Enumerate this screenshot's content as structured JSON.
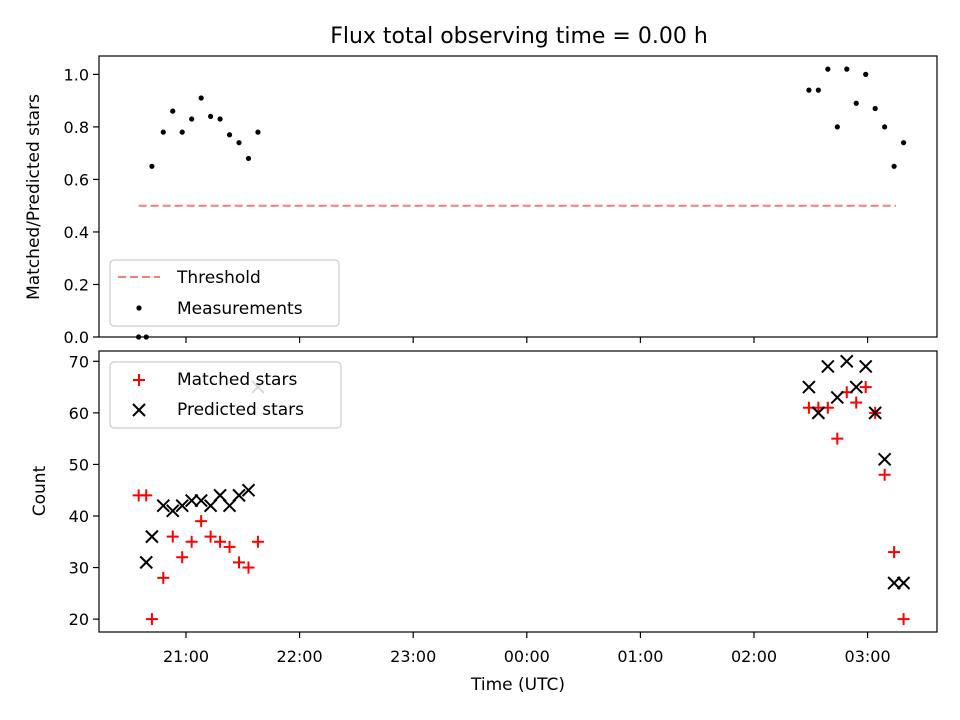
{
  "chart_data": [
    {
      "type": "scatter",
      "title": "Flux total observing time = 0.00 h",
      "xlabel": "",
      "ylabel": "Matched/Predicted stars",
      "ylim": [
        0,
        1.07
      ],
      "yticks": [
        "0.0",
        "0.2",
        "0.4",
        "0.6",
        "0.8",
        "1.0"
      ],
      "legend_placement": "lower-left",
      "grid": false,
      "series": [
        {
          "name": "Threshold",
          "kind": "dashed-line",
          "color": "#f08080",
          "x": [
            "20:35",
            "03:15"
          ],
          "y": [
            0.5,
            0.5
          ]
        },
        {
          "name": "Measurements",
          "kind": "dot",
          "color": "#000000",
          "x": [
            "20:35",
            "20:39",
            "20:42",
            "20:48",
            "20:53",
            "20:58",
            "21:03",
            "21:08",
            "21:13",
            "21:18",
            "21:23",
            "21:28",
            "21:33",
            "21:38",
            "02:29",
            "02:34",
            "02:39",
            "02:44",
            "02:49",
            "02:54",
            "02:59",
            "03:04",
            "03:09",
            "03:14",
            "03:19"
          ],
          "y": [
            0.0,
            0.0,
            0.65,
            0.78,
            0.86,
            0.78,
            0.83,
            0.91,
            0.84,
            0.83,
            0.77,
            0.74,
            0.68,
            0.78,
            0.94,
            0.94,
            1.02,
            0.8,
            1.02,
            0.89,
            1.0,
            0.87,
            0.8,
            0.65,
            0.74
          ]
        }
      ]
    },
    {
      "type": "scatter",
      "xlabel": "Time (UTC)",
      "ylabel": "Count",
      "ylim": [
        17.5,
        72
      ],
      "yticks": [
        "20",
        "30",
        "40",
        "50",
        "60",
        "70"
      ],
      "xticks": [
        "21:00",
        "22:00",
        "23:00",
        "00:00",
        "01:00",
        "02:00",
        "03:00"
      ],
      "legend_placement": "upper-left",
      "grid": false,
      "series": [
        {
          "name": "Matched stars",
          "marker": "+",
          "color": "#ff0000",
          "x": [
            "20:35",
            "20:39",
            "20:42",
            "20:48",
            "20:53",
            "20:58",
            "21:03",
            "21:08",
            "21:13",
            "21:18",
            "21:23",
            "21:28",
            "21:33",
            "21:38",
            "02:29",
            "02:34",
            "02:39",
            "02:44",
            "02:49",
            "02:54",
            "02:59",
            "03:04",
            "03:09",
            "03:14",
            "03:19"
          ],
          "y": [
            44,
            44,
            20,
            28,
            36,
            32,
            35,
            39,
            36,
            35,
            34,
            31,
            30,
            35,
            61,
            61,
            61,
            55,
            64,
            62,
            65,
            60,
            48,
            33,
            20
          ]
        },
        {
          "name": "Predicted stars",
          "marker": "x",
          "color": "#000000",
          "x": [
            "20:39",
            "20:42",
            "20:48",
            "20:53",
            "20:58",
            "21:03",
            "21:08",
            "21:13",
            "21:18",
            "21:23",
            "21:28",
            "21:33",
            "21:38",
            "02:29",
            "02:34",
            "02:39",
            "02:44",
            "02:49",
            "02:54",
            "02:59",
            "03:04",
            "03:09",
            "03:14",
            "03:19"
          ],
          "y": [
            31,
            36,
            42,
            41,
            42,
            43,
            43,
            42,
            44,
            42,
            44,
            45,
            65,
            65,
            60,
            69,
            63,
            70,
            65,
            69,
            60,
            51,
            27,
            27
          ]
        }
      ]
    }
  ]
}
